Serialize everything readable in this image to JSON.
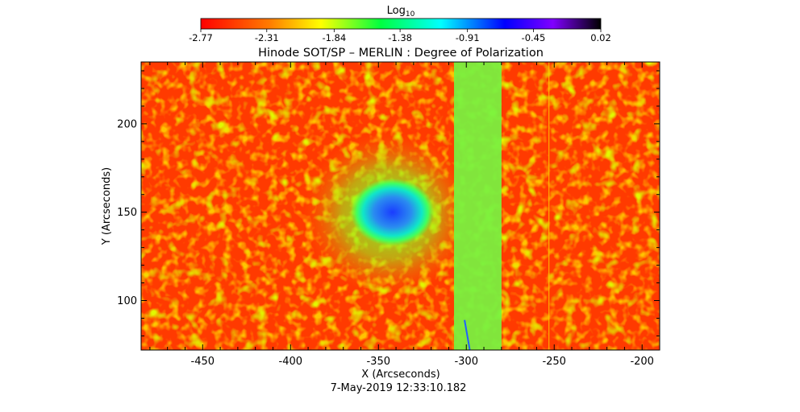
{
  "chart_data": {
    "type": "heatmap",
    "title": "Hinode SOT/SP – MERLIN : Degree of Polarization",
    "xlabel": "X (Arcseconds)",
    "ylabel": "Y (Arcseconds)",
    "timestamp": "7-May-2019 12:33:10.182",
    "xlim": [
      -485,
      -190
    ],
    "ylim": [
      72,
      235
    ],
    "x_ticks": [
      -450,
      -400,
      -350,
      -300,
      -250,
      -200
    ],
    "x_tick_labels": [
      "-450",
      "-400",
      "-350",
      "-300",
      "-250",
      "-200"
    ],
    "y_ticks": [
      100,
      150,
      200
    ],
    "y_tick_labels": [
      "100",
      "150",
      "200"
    ],
    "colorbar": {
      "label": "Log",
      "label_subscript": "10",
      "colormap": "rainbow (red → yellow → green → cyan → blue → violet → black)",
      "range": [
        -2.77,
        0.02
      ],
      "tick_values": [
        -2.77,
        -2.31,
        -1.84,
        -1.38,
        -0.91,
        -0.45,
        0.02
      ],
      "tick_labels": [
        "-2.77",
        "-2.31",
        "-1.84",
        "-1.38",
        "-0.91",
        "-0.45",
        "0.02"
      ]
    },
    "features": [
      {
        "kind": "sunspot umbra (high polarization)",
        "center": [
          -342,
          150
        ],
        "value_approx": -0.7
      },
      {
        "kind": "penumbra / plage ring",
        "center": [
          -345,
          150
        ],
        "value_approx": -1.5
      },
      {
        "kind": "vertical band (elevated values)",
        "x_range": [
          -307,
          -280
        ],
        "value_approx": -1.7
      },
      {
        "kind": "thin vertical line",
        "x": -253,
        "value_approx": -2.4
      },
      {
        "kind": "quiet-sun background",
        "value_approx": -2.6
      }
    ]
  }
}
